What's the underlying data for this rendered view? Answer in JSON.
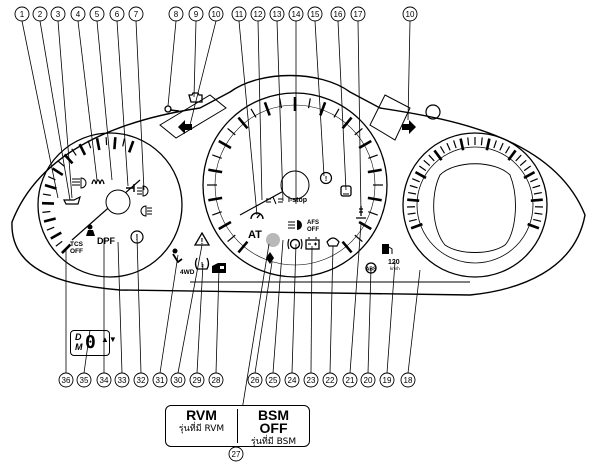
{
  "callouts": [
    "1",
    "2",
    "3",
    "4",
    "5",
    "6",
    "7",
    "8",
    "9",
    "10",
    "11",
    "12",
    "13",
    "14",
    "15",
    "16",
    "17",
    "18",
    "19",
    "20",
    "21",
    "22",
    "23",
    "24",
    "25",
    "26",
    "27",
    "28",
    "29",
    "30",
    "31",
    "32",
    "33",
    "34",
    "35",
    "36"
  ],
  "indicators": {
    "at": "AT",
    "dpf": "DPF",
    "tcs_line1": "TCS",
    "tcs_line2": "OFF",
    "istop": "i-stop",
    "afs_line1": "AFS",
    "afs_line2": "OFF",
    "fourwd": "4WD",
    "speed_value": "120",
    "speed_unit": "km/h"
  },
  "gear_display": {
    "d": "D",
    "m": "M",
    "digit": "0",
    "arrows": "▲▼"
  },
  "inset": {
    "left_title": "RVM",
    "left_note": "รุ่นที่มี RVM",
    "right_title_line1": "BSM",
    "right_title_line2": "OFF",
    "right_note": "รุ่นที่มี BSM"
  },
  "icons": [
    "engine-warning-icon",
    "wrench-icon",
    "turn-signal-left-icon",
    "turn-signal-right-icon",
    "brake-icon",
    "cruise-icon",
    "headlight-icon",
    "fog-light-icon",
    "airbag-icon",
    "seat-belt-icon",
    "warning-triangle-icon",
    "tire-pressure-icon",
    "oil-pressure-icon",
    "glow-plug-icon",
    "coolant-temp-icon",
    "battery-icon",
    "door-open-icon"
  ]
}
